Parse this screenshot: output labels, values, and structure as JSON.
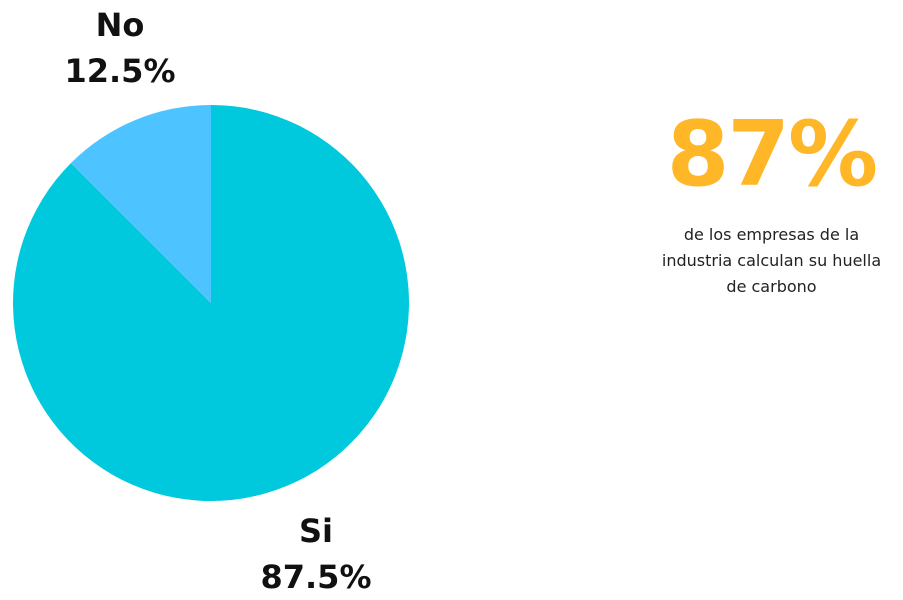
{
  "chart_data": {
    "type": "pie",
    "slices": [
      {
        "label": "No",
        "value": 12.5,
        "display": "12.5%",
        "color": "#4DC3FF"
      },
      {
        "label": "Si",
        "value": 87.5,
        "display": "87.5%",
        "color": "#00C8DD"
      }
    ]
  },
  "stat": {
    "value": "87%",
    "value_color": "#FFB627",
    "description": "de los empresas de la industria calculan su huella de carbono"
  }
}
